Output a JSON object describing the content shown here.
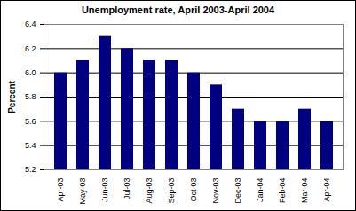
{
  "chart_data": {
    "type": "bar",
    "title": "Unemployment rate, April 2003-April 2004",
    "ylabel": "Percent",
    "categories": [
      "Apr-03",
      "May-03",
      "Jun-03",
      "Jul-03",
      "Aug-03",
      "Sep-03",
      "Oct-03",
      "Nov-03",
      "Dec-03",
      "Jan-04",
      "Feb-04",
      "Mar-04",
      "Apr-04"
    ],
    "values": [
      6.0,
      6.1,
      6.3,
      6.2,
      6.1,
      6.1,
      6.0,
      5.9,
      5.7,
      5.6,
      5.6,
      5.7,
      5.6
    ],
    "color": "#000080",
    "ylim": [
      5.2,
      6.4
    ],
    "yticks": [
      5.2,
      5.4,
      5.6,
      5.8,
      {
        "value": 6,
        "label": "6.0"
      },
      6.2,
      6.4
    ],
    "grid": true
  }
}
